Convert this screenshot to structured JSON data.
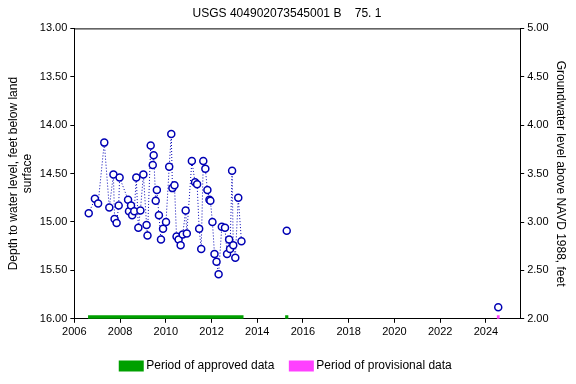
{
  "chart_data": {
    "type": "line",
    "title": "USGS 404902073545001 B    75. 1",
    "y_label": [
      "Depth to water level, feet below land",
      "surface"
    ],
    "y2_label": "Groundwater level above NAVD 1988, feet",
    "xlim": [
      2006,
      2025.5
    ],
    "xticks": [
      2006,
      2008,
      2010,
      2012,
      2014,
      2016,
      2018,
      2020,
      2022,
      2024
    ],
    "ylim": [
      16,
      13
    ],
    "yticks": [
      {
        "value": 13,
        "label": "13.00"
      },
      {
        "value": 13.5,
        "label": "13.50"
      },
      {
        "value": 14,
        "label": "14.00"
      },
      {
        "value": 14.5,
        "label": "14.50"
      },
      {
        "value": 15,
        "label": "15.00"
      },
      {
        "value": 15.5,
        "label": "15.50"
      },
      {
        "value": 16,
        "label": "16.00"
      }
    ],
    "y2lim": [
      2,
      5
    ],
    "y2ticks": [
      {
        "value": 2,
        "label": "2.00"
      },
      {
        "value": 2.5,
        "label": "2.50"
      },
      {
        "value": 3,
        "label": "3.00"
      },
      {
        "value": 3.5,
        "label": "3.50"
      },
      {
        "value": 4,
        "label": "4.00"
      },
      {
        "value": 4.5,
        "label": "4.50"
      },
      {
        "value": 5,
        "label": "5.00"
      }
    ],
    "grid": false,
    "legend": "bottom",
    "x": [
      2006.63,
      2006.9,
      2007.04,
      2007.31,
      2007.53,
      2007.71,
      2007.76,
      2007.85,
      2007.94,
      2007.98,
      2008.35,
      2008.39,
      2008.48,
      2008.53,
      2008.62,
      2008.71,
      2008.8,
      2008.89,
      2009.02,
      2009.16,
      2009.2,
      2009.34,
      2009.43,
      2009.47,
      2009.56,
      2009.61,
      2009.7,
      2009.79,
      2009.88,
      2010.01,
      2010.15,
      2010.24,
      2010.29,
      2010.38,
      2010.47,
      2010.56,
      2010.65,
      2010.74,
      2010.87,
      2010.92,
      2011.14,
      2011.28,
      2011.37,
      2011.46,
      2011.55,
      2011.64,
      2011.73,
      2011.82,
      2011.91,
      2011.95,
      2012.04,
      2012.13,
      2012.22,
      2012.31,
      2012.45,
      2012.59,
      2012.68,
      2012.77,
      2012.81,
      2012.9,
      2012.95,
      2013.04,
      2013.17,
      2013.31,
      2015.29,
      2024.54
    ],
    "series": [
      {
        "color": "#0000b4",
        "marker": "circle",
        "line_style": "dotted",
        "values": [
          14.91,
          14.76,
          14.81,
          14.18,
          14.85,
          14.51,
          14.97,
          15.01,
          14.83,
          14.54,
          14.77,
          14.89,
          14.83,
          14.93,
          14.89,
          14.54,
          15.06,
          14.88,
          14.51,
          15.03,
          15.14,
          14.21,
          14.41,
          14.31,
          14.78,
          14.67,
          14.93,
          15.18,
          15.07,
          15.0,
          14.43,
          14.09,
          14.65,
          14.62,
          15.15,
          15.18,
          15.24,
          15.13,
          14.88,
          15.12,
          14.37,
          14.59,
          14.61,
          15.07,
          15.28,
          14.37,
          14.45,
          14.67,
          14.77,
          14.78,
          15.0,
          15.33,
          15.41,
          15.54,
          15.05,
          15.06,
          15.33,
          15.18,
          15.28,
          14.47,
          15.24,
          15.37,
          14.75,
          15.2,
          15.09,
          15.88
        ]
      }
    ],
    "periods": [
      {
        "name": "Period of approved data",
        "color": "#00a000",
        "ranges": [
          [
            2006.6,
            2013.4
          ],
          [
            2015.22,
            2015.36
          ]
        ]
      },
      {
        "name": "Period of provisional data",
        "color": "#ff40ff",
        "ranges": [
          [
            2024.48,
            2024.6
          ]
        ]
      }
    ]
  }
}
